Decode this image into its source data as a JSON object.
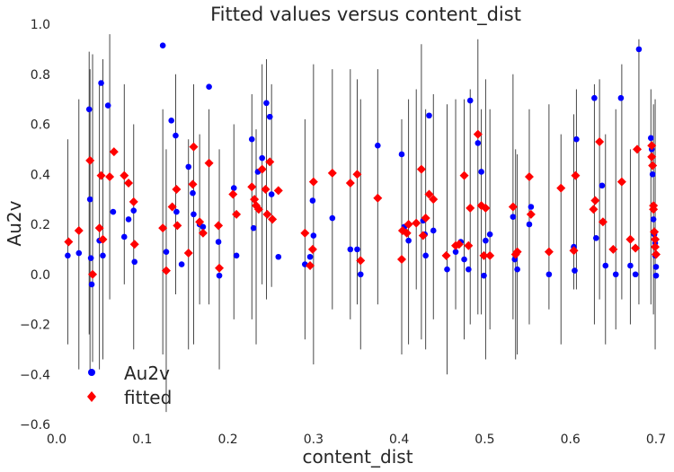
{
  "chart_data": {
    "type": "scatter",
    "title": "Fitted values versus content_dist",
    "xlabel": "content_dist",
    "ylabel": "Au2v",
    "xlim": [
      0.0,
      0.7
    ],
    "ylim": [
      -0.6,
      1.0
    ],
    "xticks": [
      "0.0",
      "0.1",
      "0.2",
      "0.3",
      "0.4",
      "0.5",
      "0.6",
      "0.7"
    ],
    "yticks": [
      "1.0",
      "0.8",
      "0.6",
      "0.4",
      "0.2",
      "0.0",
      "−0.2",
      "−0.4",
      "−0.6"
    ],
    "grid": false,
    "legend_position": "lower-left",
    "series": [
      {
        "name": "Au2v",
        "color": "#0000ff",
        "marker": "circle",
        "points": [
          [
            0.013,
            0.075
          ],
          [
            0.026,
            0.085
          ],
          [
            0.038,
            0.66
          ],
          [
            0.039,
            0.3
          ],
          [
            0.04,
            0.065
          ],
          [
            0.041,
            -0.04
          ],
          [
            0.05,
            0.135
          ],
          [
            0.052,
            0.765
          ],
          [
            0.054,
            0.075
          ],
          [
            0.06,
            0.675
          ],
          [
            0.066,
            0.25
          ],
          [
            0.079,
            0.15
          ],
          [
            0.084,
            0.22
          ],
          [
            0.09,
            0.255
          ],
          [
            0.091,
            0.05
          ],
          [
            0.124,
            0.915
          ],
          [
            0.128,
            0.09
          ],
          [
            0.134,
            0.615
          ],
          [
            0.139,
            0.555
          ],
          [
            0.14,
            0.25
          ],
          [
            0.146,
            0.04
          ],
          [
            0.154,
            0.43
          ],
          [
            0.159,
            0.325
          ],
          [
            0.16,
            0.24
          ],
          [
            0.167,
            0.2
          ],
          [
            0.171,
            0.19
          ],
          [
            0.178,
            0.75
          ],
          [
            0.189,
            0.13
          ],
          [
            0.19,
            -0.005
          ],
          [
            0.207,
            0.345
          ],
          [
            0.21,
            0.075
          ],
          [
            0.228,
            0.54
          ],
          [
            0.23,
            0.185
          ],
          [
            0.235,
            0.41
          ],
          [
            0.24,
            0.465
          ],
          [
            0.245,
            0.685
          ],
          [
            0.249,
            0.63
          ],
          [
            0.251,
            0.32
          ],
          [
            0.259,
            0.07
          ],
          [
            0.29,
            0.04
          ],
          [
            0.296,
            0.07
          ],
          [
            0.299,
            0.295
          ],
          [
            0.3,
            0.155
          ],
          [
            0.322,
            0.225
          ],
          [
            0.343,
            0.1
          ],
          [
            0.351,
            0.1
          ],
          [
            0.355,
            0.0
          ],
          [
            0.375,
            0.515
          ],
          [
            0.403,
            0.48
          ],
          [
            0.406,
            0.19
          ],
          [
            0.411,
            0.135
          ],
          [
            0.42,
            0.205
          ],
          [
            0.428,
            0.215
          ],
          [
            0.43,
            0.16
          ],
          [
            0.431,
            0.075
          ],
          [
            0.435,
            0.635
          ],
          [
            0.44,
            0.175
          ],
          [
            0.456,
            0.02
          ],
          [
            0.466,
            0.09
          ],
          [
            0.472,
            0.13
          ],
          [
            0.476,
            0.06
          ],
          [
            0.481,
            0.02
          ],
          [
            0.483,
            0.695
          ],
          [
            0.492,
            0.525
          ],
          [
            0.496,
            0.41
          ],
          [
            0.499,
            -0.005
          ],
          [
            0.501,
            0.135
          ],
          [
            0.506,
            0.16
          ],
          [
            0.533,
            0.23
          ],
          [
            0.535,
            0.06
          ],
          [
            0.538,
            0.02
          ],
          [
            0.552,
            0.2
          ],
          [
            0.554,
            0.27
          ],
          [
            0.575,
            0.0
          ],
          [
            0.604,
            0.11
          ],
          [
            0.605,
            0.015
          ],
          [
            0.607,
            0.54
          ],
          [
            0.628,
            0.705
          ],
          [
            0.63,
            0.145
          ],
          [
            0.637,
            0.355
          ],
          [
            0.641,
            0.035
          ],
          [
            0.653,
            0.0
          ],
          [
            0.659,
            0.705
          ],
          [
            0.67,
            0.035
          ],
          [
            0.676,
            0.0
          ],
          [
            0.68,
            0.9
          ],
          [
            0.694,
            0.545
          ],
          [
            0.695,
            0.5
          ],
          [
            0.696,
            0.4
          ],
          [
            0.697,
            0.26
          ],
          [
            0.697,
            0.22
          ],
          [
            0.698,
            0.16
          ],
          [
            0.699,
            0.125
          ],
          [
            0.699,
            0.075
          ],
          [
            0.7,
            0.03
          ],
          [
            0.7,
            -0.005
          ]
        ]
      },
      {
        "name": "fitted",
        "color": "#ff0000",
        "marker": "diamond",
        "points": [
          [
            0.014,
            0.13
          ],
          [
            0.026,
            0.175
          ],
          [
            0.039,
            0.455
          ],
          [
            0.042,
            0.0
          ],
          [
            0.05,
            0.185
          ],
          [
            0.052,
            0.395
          ],
          [
            0.054,
            0.14
          ],
          [
            0.062,
            0.39
          ],
          [
            0.067,
            0.49
          ],
          [
            0.079,
            0.395
          ],
          [
            0.084,
            0.365
          ],
          [
            0.09,
            0.29
          ],
          [
            0.091,
            0.12
          ],
          [
            0.124,
            0.185
          ],
          [
            0.128,
            0.015
          ],
          [
            0.135,
            0.27
          ],
          [
            0.14,
            0.34
          ],
          [
            0.141,
            0.195
          ],
          [
            0.154,
            0.085
          ],
          [
            0.159,
            0.36
          ],
          [
            0.16,
            0.51
          ],
          [
            0.167,
            0.21
          ],
          [
            0.171,
            0.165
          ],
          [
            0.178,
            0.445
          ],
          [
            0.189,
            0.195
          ],
          [
            0.19,
            0.025
          ],
          [
            0.206,
            0.32
          ],
          [
            0.21,
            0.24
          ],
          [
            0.228,
            0.35
          ],
          [
            0.231,
            0.3
          ],
          [
            0.233,
            0.275
          ],
          [
            0.236,
            0.26
          ],
          [
            0.24,
            0.42
          ],
          [
            0.244,
            0.34
          ],
          [
            0.246,
            0.24
          ],
          [
            0.249,
            0.45
          ],
          [
            0.252,
            0.22
          ],
          [
            0.259,
            0.335
          ],
          [
            0.29,
            0.165
          ],
          [
            0.296,
            0.035
          ],
          [
            0.299,
            0.1
          ],
          [
            0.3,
            0.37
          ],
          [
            0.322,
            0.405
          ],
          [
            0.343,
            0.365
          ],
          [
            0.351,
            0.4
          ],
          [
            0.355,
            0.055
          ],
          [
            0.375,
            0.305
          ],
          [
            0.403,
            0.06
          ],
          [
            0.404,
            0.175
          ],
          [
            0.409,
            0.165
          ],
          [
            0.411,
            0.2
          ],
          [
            0.42,
            0.205
          ],
          [
            0.426,
            0.42
          ],
          [
            0.428,
            0.155
          ],
          [
            0.431,
            0.225
          ],
          [
            0.435,
            0.32
          ],
          [
            0.44,
            0.3
          ],
          [
            0.455,
            0.075
          ],
          [
            0.466,
            0.115
          ],
          [
            0.47,
            0.12
          ],
          [
            0.476,
            0.395
          ],
          [
            0.481,
            0.115
          ],
          [
            0.483,
            0.265
          ],
          [
            0.492,
            0.56
          ],
          [
            0.496,
            0.275
          ],
          [
            0.499,
            0.075
          ],
          [
            0.501,
            0.265
          ],
          [
            0.506,
            0.075
          ],
          [
            0.533,
            0.27
          ],
          [
            0.536,
            0.08
          ],
          [
            0.538,
            0.09
          ],
          [
            0.552,
            0.39
          ],
          [
            0.554,
            0.24
          ],
          [
            0.575,
            0.09
          ],
          [
            0.589,
            0.345
          ],
          [
            0.604,
            0.095
          ],
          [
            0.606,
            0.395
          ],
          [
            0.627,
            0.26
          ],
          [
            0.629,
            0.295
          ],
          [
            0.634,
            0.53
          ],
          [
            0.638,
            0.21
          ],
          [
            0.65,
            0.1
          ],
          [
            0.66,
            0.37
          ],
          [
            0.67,
            0.14
          ],
          [
            0.676,
            0.105
          ],
          [
            0.678,
            0.5
          ],
          [
            0.695,
            0.515
          ],
          [
            0.695,
            0.47
          ],
          [
            0.696,
            0.435
          ],
          [
            0.697,
            0.275
          ],
          [
            0.697,
            0.26
          ],
          [
            0.698,
            0.17
          ],
          [
            0.699,
            0.14
          ],
          [
            0.699,
            0.11
          ],
          [
            0.7,
            0.08
          ]
        ]
      }
    ],
    "error_bars": [
      [
        0.013,
        -0.28,
        0.54
      ],
      [
        0.026,
        -0.38,
        0.7
      ],
      [
        0.038,
        -0.24,
        0.89
      ],
      [
        0.039,
        -0.39,
        0.82
      ],
      [
        0.042,
        -0.35,
        0.88
      ],
      [
        0.05,
        -0.38,
        0.76
      ],
      [
        0.054,
        -0.34,
        0.86
      ],
      [
        0.062,
        -0.1,
        0.96
      ],
      [
        0.079,
        -0.04,
        0.76
      ],
      [
        0.09,
        -0.3,
        0.6
      ],
      [
        0.124,
        -0.32,
        0.66
      ],
      [
        0.128,
        -0.55,
        0.5
      ],
      [
        0.139,
        -0.08,
        0.8
      ],
      [
        0.154,
        -0.3,
        0.54
      ],
      [
        0.16,
        -0.28,
        0.76
      ],
      [
        0.167,
        -0.12,
        0.56
      ],
      [
        0.178,
        -0.12,
        0.66
      ],
      [
        0.19,
        -0.38,
        0.5
      ],
      [
        0.207,
        -0.18,
        0.6
      ],
      [
        0.228,
        -0.18,
        0.72
      ],
      [
        0.233,
        -0.28,
        0.58
      ],
      [
        0.24,
        -0.04,
        0.84
      ],
      [
        0.245,
        -0.1,
        0.86
      ],
      [
        0.251,
        -0.05,
        0.76
      ],
      [
        0.29,
        -0.26,
        0.62
      ],
      [
        0.3,
        -0.36,
        0.84
      ],
      [
        0.322,
        -0.14,
        0.82
      ],
      [
        0.343,
        -0.18,
        0.82
      ],
      [
        0.351,
        -0.12,
        0.78
      ],
      [
        0.355,
        -0.3,
        0.7
      ],
      [
        0.375,
        -0.12,
        0.82
      ],
      [
        0.403,
        -0.32,
        0.62
      ],
      [
        0.411,
        -0.28,
        0.7
      ],
      [
        0.42,
        -0.06,
        0.74
      ],
      [
        0.426,
        -0.26,
        0.92
      ],
      [
        0.431,
        -0.3,
        0.66
      ],
      [
        0.44,
        -0.18,
        0.72
      ],
      [
        0.456,
        -0.4,
        0.68
      ],
      [
        0.466,
        -0.14,
        0.7
      ],
      [
        0.476,
        -0.26,
        0.7
      ],
      [
        0.483,
        -0.2,
        0.74
      ],
      [
        0.492,
        -0.16,
        0.94
      ],
      [
        0.496,
        -0.16,
        0.66
      ],
      [
        0.501,
        -0.34,
        0.78
      ],
      [
        0.506,
        -0.22,
        0.66
      ],
      [
        0.533,
        -0.18,
        0.8
      ],
      [
        0.536,
        -0.34,
        0.5
      ],
      [
        0.538,
        -0.32,
        0.48
      ],
      [
        0.552,
        -0.2,
        0.66
      ],
      [
        0.575,
        -0.14,
        0.68
      ],
      [
        0.589,
        -0.28,
        0.56
      ],
      [
        0.604,
        -0.06,
        0.64
      ],
      [
        0.607,
        -0.06,
        0.74
      ],
      [
        0.628,
        -0.2,
        0.76
      ],
      [
        0.634,
        -0.1,
        0.78
      ],
      [
        0.641,
        -0.28,
        0.56
      ],
      [
        0.653,
        -0.22,
        0.66
      ],
      [
        0.66,
        -0.1,
        0.84
      ],
      [
        0.67,
        -0.2,
        0.5
      ],
      [
        0.68,
        -0.12,
        0.94
      ],
      [
        0.694,
        -0.12,
        0.74
      ],
      [
        0.697,
        -0.16,
        0.68
      ],
      [
        0.699,
        -0.3,
        0.7
      ]
    ]
  }
}
